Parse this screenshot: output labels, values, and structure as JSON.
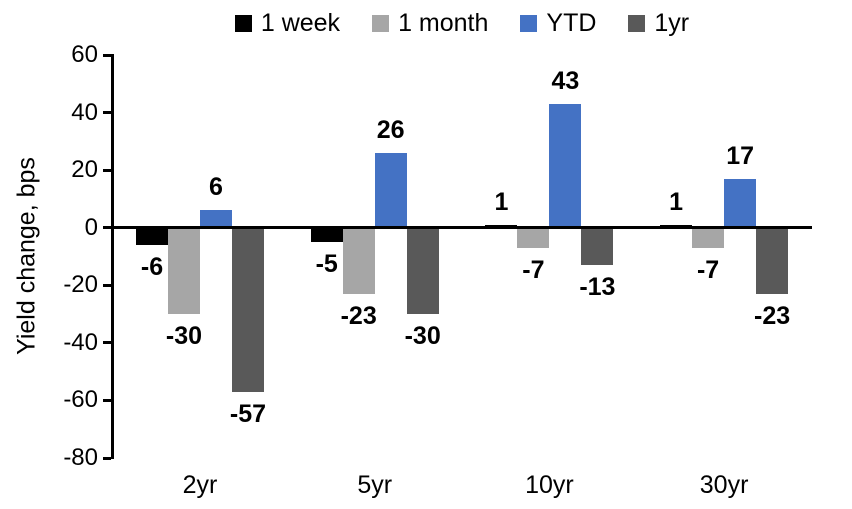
{
  "chart_data": {
    "type": "bar",
    "title": "",
    "ylabel": "Yield change, bps",
    "xlabel": "",
    "categories": [
      "2yr",
      "5yr",
      "10yr",
      "30yr"
    ],
    "series": [
      {
        "name": "1 week",
        "color": "#000000",
        "values": [
          -6,
          -5,
          1,
          1
        ]
      },
      {
        "name": "1 month",
        "color": "#A6A6A6",
        "values": [
          -30,
          -23,
          -7,
          -7
        ]
      },
      {
        "name": "YTD",
        "color": "#4472C4",
        "values": [
          6,
          26,
          43,
          17
        ]
      },
      {
        "name": "1yr",
        "color": "#595959",
        "values": [
          -57,
          -30,
          -13,
          -23
        ]
      }
    ],
    "ylim": [
      -80,
      60
    ],
    "yticks": [
      60,
      40,
      20,
      0,
      -20,
      -40,
      -60,
      -80
    ],
    "legend_position": "top",
    "grid": false,
    "data_labels": true,
    "axis_color": "#000000",
    "background_color": "#FFFFFF"
  }
}
